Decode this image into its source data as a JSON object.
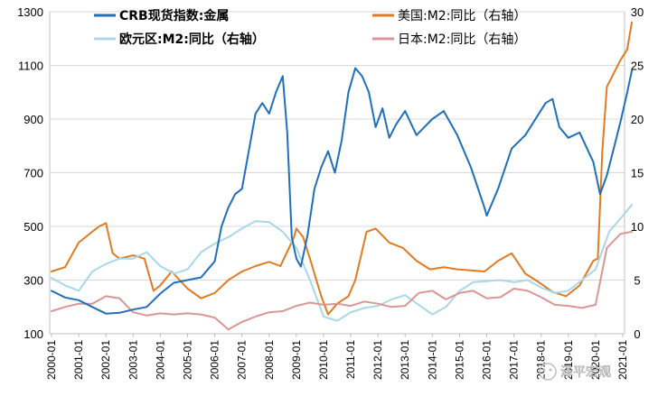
{
  "chart_data": {
    "type": "line",
    "x_label_years": [
      "2000-01",
      "2001-01",
      "2002-01",
      "2003-01",
      "2004-01",
      "2005-01",
      "2006-01",
      "2007-01",
      "2008-01",
      "2009-01",
      "2010-01",
      "2011-01",
      "2012-01",
      "2013-01",
      "2014-01",
      "2015-01",
      "2016-01",
      "2017-01",
      "2018-01",
      "2019-01",
      "2020-01",
      "2021-01"
    ],
    "left_axis": {
      "ticks": [
        100,
        300,
        500,
        700,
        900,
        1100,
        1300
      ],
      "ylim": [
        100,
        1300
      ]
    },
    "right_axis": {
      "ticks": [
        0,
        5,
        10,
        15,
        20,
        25,
        30
      ],
      "ylim": [
        0,
        30
      ]
    },
    "grid": true,
    "legend_position": "top",
    "series": [
      {
        "name": "CRB现货指数:金属",
        "axis": "left",
        "color": "#1f6fba",
        "width": 2,
        "points": [
          [
            "2000-01",
            260
          ],
          [
            "2000-07",
            235
          ],
          [
            "2001-01",
            225
          ],
          [
            "2001-07",
            200
          ],
          [
            "2002-01",
            175
          ],
          [
            "2002-07",
            178
          ],
          [
            "2003-01",
            190
          ],
          [
            "2003-07",
            200
          ],
          [
            "2004-01",
            250
          ],
          [
            "2004-07",
            290
          ],
          [
            "2005-01",
            300
          ],
          [
            "2005-07",
            310
          ],
          [
            "2006-01",
            370
          ],
          [
            "2006-04",
            500
          ],
          [
            "2006-07",
            570
          ],
          [
            "2006-10",
            620
          ],
          [
            "2007-01",
            640
          ],
          [
            "2007-04",
            780
          ],
          [
            "2007-07",
            920
          ],
          [
            "2007-10",
            960
          ],
          [
            "2008-01",
            920
          ],
          [
            "2008-04",
            1000
          ],
          [
            "2008-07",
            1060
          ],
          [
            "2008-09",
            850
          ],
          [
            "2008-11",
            460
          ],
          [
            "2009-01",
            380
          ],
          [
            "2009-03",
            350
          ],
          [
            "2009-06",
            470
          ],
          [
            "2009-09",
            640
          ],
          [
            "2009-12",
            720
          ],
          [
            "2010-03",
            780
          ],
          [
            "2010-06",
            700
          ],
          [
            "2010-09",
            820
          ],
          [
            "2010-12",
            1000
          ],
          [
            "2011-03",
            1090
          ],
          [
            "2011-06",
            1060
          ],
          [
            "2011-09",
            1000
          ],
          [
            "2011-12",
            870
          ],
          [
            "2012-03",
            940
          ],
          [
            "2012-06",
            830
          ],
          [
            "2012-09",
            880
          ],
          [
            "2013-01",
            930
          ],
          [
            "2013-06",
            840
          ],
          [
            "2014-01",
            900
          ],
          [
            "2014-06",
            930
          ],
          [
            "2014-12",
            840
          ],
          [
            "2015-06",
            720
          ],
          [
            "2015-12",
            570
          ],
          [
            "2016-01",
            540
          ],
          [
            "2016-06",
            640
          ],
          [
            "2016-12",
            790
          ],
          [
            "2017-06",
            840
          ],
          [
            "2017-12",
            920
          ],
          [
            "2018-03",
            960
          ],
          [
            "2018-06",
            975
          ],
          [
            "2018-09",
            870
          ],
          [
            "2019-01",
            830
          ],
          [
            "2019-06",
            850
          ],
          [
            "2019-12",
            740
          ],
          [
            "2020-03",
            620
          ],
          [
            "2020-06",
            690
          ],
          [
            "2020-09",
            790
          ],
          [
            "2020-12",
            890
          ],
          [
            "2021-03",
            1000
          ],
          [
            "2021-05",
            1080
          ]
        ]
      },
      {
        "name": "美国:M2:同比（右轴）",
        "axis": "right",
        "color": "#e07a23",
        "width": 2,
        "points": [
          [
            "2000-01",
            5.8
          ],
          [
            "2000-07",
            6.2
          ],
          [
            "2001-01",
            8.5
          ],
          [
            "2001-07",
            9.5
          ],
          [
            "2001-10",
            10.0
          ],
          [
            "2002-01",
            10.3
          ],
          [
            "2002-04",
            7.5
          ],
          [
            "2002-07",
            7.0
          ],
          [
            "2003-01",
            7.3
          ],
          [
            "2003-06",
            7.0
          ],
          [
            "2003-10",
            4.0
          ],
          [
            "2004-01",
            4.5
          ],
          [
            "2004-06",
            5.8
          ],
          [
            "2005-01",
            4.2
          ],
          [
            "2005-07",
            3.3
          ],
          [
            "2006-01",
            3.8
          ],
          [
            "2006-07",
            5.0
          ],
          [
            "2007-01",
            5.8
          ],
          [
            "2007-07",
            6.3
          ],
          [
            "2008-01",
            6.7
          ],
          [
            "2008-06",
            6.3
          ],
          [
            "2008-12",
            9.0
          ],
          [
            "2009-01",
            9.8
          ],
          [
            "2009-04",
            9.0
          ],
          [
            "2009-07",
            7.0
          ],
          [
            "2009-12",
            3.5
          ],
          [
            "2010-03",
            1.8
          ],
          [
            "2010-07",
            2.8
          ],
          [
            "2010-12",
            3.5
          ],
          [
            "2011-03",
            5.0
          ],
          [
            "2011-08",
            9.5
          ],
          [
            "2011-12",
            9.8
          ],
          [
            "2012-06",
            8.5
          ],
          [
            "2012-12",
            8.0
          ],
          [
            "2013-06",
            6.8
          ],
          [
            "2013-12",
            6.0
          ],
          [
            "2014-06",
            6.2
          ],
          [
            "2014-12",
            6.0
          ],
          [
            "2015-06",
            5.9
          ],
          [
            "2015-12",
            5.8
          ],
          [
            "2016-06",
            6.8
          ],
          [
            "2016-12",
            7.5
          ],
          [
            "2017-06",
            5.6
          ],
          [
            "2017-12",
            4.8
          ],
          [
            "2018-06",
            3.9
          ],
          [
            "2018-12",
            3.5
          ],
          [
            "2019-06",
            4.5
          ],
          [
            "2019-12",
            6.8
          ],
          [
            "2020-02",
            7.0
          ],
          [
            "2020-04",
            17.0
          ],
          [
            "2020-06",
            23.0
          ],
          [
            "2020-12",
            25.5
          ],
          [
            "2021-03",
            26.5
          ],
          [
            "2021-05",
            29.0
          ]
        ]
      },
      {
        "name": "欧元区:M2:同比（右轴）",
        "axis": "right",
        "color": "#a8d8e8",
        "width": 2,
        "points": [
          [
            "2000-01",
            5.2
          ],
          [
            "2000-07",
            4.5
          ],
          [
            "2001-01",
            4.0
          ],
          [
            "2001-07",
            5.8
          ],
          [
            "2002-01",
            6.5
          ],
          [
            "2002-07",
            7.0
          ],
          [
            "2003-01",
            7.0
          ],
          [
            "2003-07",
            7.6
          ],
          [
            "2004-01",
            6.3
          ],
          [
            "2004-07",
            5.6
          ],
          [
            "2005-01",
            6.0
          ],
          [
            "2005-07",
            7.6
          ],
          [
            "2006-01",
            8.4
          ],
          [
            "2006-07",
            9.0
          ],
          [
            "2007-01",
            9.8
          ],
          [
            "2007-07",
            10.5
          ],
          [
            "2008-01",
            10.4
          ],
          [
            "2008-07",
            9.5
          ],
          [
            "2009-01",
            8.0
          ],
          [
            "2009-07",
            5.0
          ],
          [
            "2010-01",
            1.6
          ],
          [
            "2010-07",
            1.2
          ],
          [
            "2011-01",
            2.0
          ],
          [
            "2011-07",
            2.4
          ],
          [
            "2012-01",
            2.6
          ],
          [
            "2012-07",
            3.2
          ],
          [
            "2013-01",
            3.6
          ],
          [
            "2013-07",
            2.7
          ],
          [
            "2014-01",
            1.8
          ],
          [
            "2014-07",
            2.5
          ],
          [
            "2015-01",
            4.0
          ],
          [
            "2015-07",
            4.8
          ],
          [
            "2016-01",
            4.9
          ],
          [
            "2016-07",
            5.0
          ],
          [
            "2017-01",
            4.8
          ],
          [
            "2017-07",
            5.0
          ],
          [
            "2018-01",
            4.3
          ],
          [
            "2018-07",
            3.8
          ],
          [
            "2019-01",
            4.0
          ],
          [
            "2019-07",
            5.0
          ],
          [
            "2020-01",
            6.0
          ],
          [
            "2020-07",
            9.5
          ],
          [
            "2021-01",
            11.0
          ],
          [
            "2021-05",
            12.0
          ]
        ]
      },
      {
        "name": "日本:M2:同比（右轴）",
        "axis": "right",
        "color": "#d99694",
        "width": 2,
        "points": [
          [
            "2000-01",
            2.1
          ],
          [
            "2000-07",
            2.5
          ],
          [
            "2001-01",
            2.8
          ],
          [
            "2001-07",
            2.8
          ],
          [
            "2002-01",
            3.5
          ],
          [
            "2002-07",
            3.3
          ],
          [
            "2003-01",
            2.0
          ],
          [
            "2003-07",
            1.7
          ],
          [
            "2004-01",
            1.9
          ],
          [
            "2004-07",
            1.8
          ],
          [
            "2005-01",
            1.9
          ],
          [
            "2005-07",
            1.8
          ],
          [
            "2006-01",
            1.5
          ],
          [
            "2006-07",
            0.4
          ],
          [
            "2007-01",
            1.1
          ],
          [
            "2007-07",
            1.6
          ],
          [
            "2008-01",
            2.0
          ],
          [
            "2008-07",
            2.1
          ],
          [
            "2009-01",
            2.6
          ],
          [
            "2009-07",
            2.9
          ],
          [
            "2010-01",
            2.7
          ],
          [
            "2010-07",
            2.8
          ],
          [
            "2011-01",
            2.6
          ],
          [
            "2011-07",
            3.0
          ],
          [
            "2012-01",
            2.8
          ],
          [
            "2012-07",
            2.5
          ],
          [
            "2013-01",
            2.6
          ],
          [
            "2013-07",
            3.8
          ],
          [
            "2014-01",
            4.0
          ],
          [
            "2014-07",
            3.2
          ],
          [
            "2015-01",
            3.8
          ],
          [
            "2015-07",
            4.0
          ],
          [
            "2016-01",
            3.3
          ],
          [
            "2016-07",
            3.4
          ],
          [
            "2017-01",
            4.2
          ],
          [
            "2017-07",
            4.0
          ],
          [
            "2018-01",
            3.4
          ],
          [
            "2018-07",
            2.7
          ],
          [
            "2019-01",
            2.6
          ],
          [
            "2019-07",
            2.4
          ],
          [
            "2020-01",
            2.7
          ],
          [
            "2020-06",
            8.0
          ],
          [
            "2020-12",
            9.3
          ],
          [
            "2021-05",
            9.5
          ]
        ]
      }
    ]
  },
  "watermark": {
    "text": "泽平宏观"
  }
}
